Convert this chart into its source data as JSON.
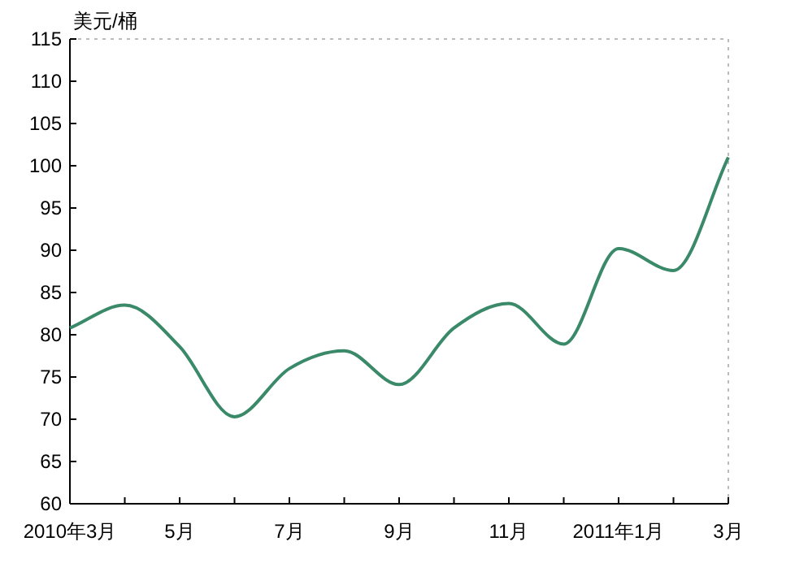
{
  "chart_data": {
    "type": "line",
    "ylabel": "美元/桶",
    "categories": [
      "2010年3月",
      null,
      "5月",
      null,
      "7月",
      null,
      "9月",
      null,
      "11月",
      null,
      "2011年1月",
      null,
      "3月"
    ],
    "series": [
      {
        "color": "#3a8a6a",
        "values": [
          80.8,
          83.5,
          78.6,
          70.3,
          76.0,
          78.1,
          74.1,
          80.8,
          83.7,
          78.9,
          90.2,
          87.6,
          101.0
        ]
      }
    ],
    "ylim": [
      60,
      115
    ],
    "yticks": [
      60,
      65,
      70,
      75,
      80,
      85,
      90,
      95,
      100,
      105,
      110,
      115
    ],
    "grid": false,
    "marker": "none",
    "line_style": "solid"
  }
}
